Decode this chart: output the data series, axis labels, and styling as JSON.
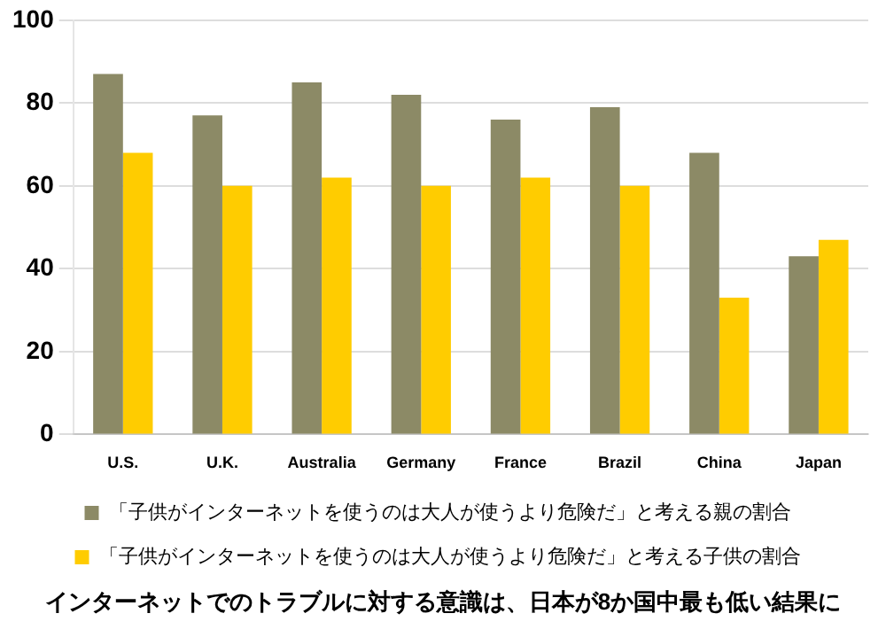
{
  "chart_data": {
    "type": "bar",
    "categories": [
      "U.S.",
      "U.K.",
      "Australia",
      "Germany",
      "France",
      "Brazil",
      "China",
      "Japan"
    ],
    "series": [
      {
        "name": "「子供がインターネットを使うのは大人が使うより危険だ」と考える親の割合",
        "color": "#8c8a66",
        "values": [
          87,
          77,
          85,
          82,
          76,
          79,
          68,
          43
        ]
      },
      {
        "name": "「子供がインターネットを使うのは大人が使うより危険だ」と考える子供の割合",
        "color": "#ffcc00",
        "values": [
          68,
          60,
          62,
          60,
          62,
          60,
          33,
          47
        ]
      }
    ],
    "ylim": [
      0,
      100
    ],
    "yticks": [
      0,
      20,
      40,
      60,
      80,
      100
    ],
    "grid": "y",
    "legend": "bottom",
    "annotations": [
      "インターネットでのトラブルに対する意識は、日本が8か国中最も低い結果に"
    ]
  }
}
